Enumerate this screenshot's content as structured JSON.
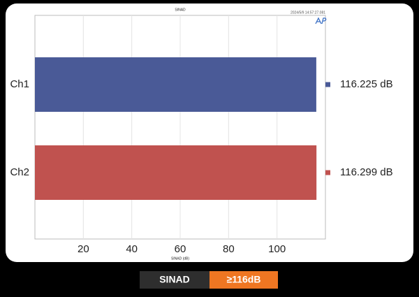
{
  "chart_data": {
    "type": "hbar",
    "title": "SINAD",
    "subtitle": "2024/5/9 14:57:27.081",
    "x_label": "SINAD (dB)",
    "categories": [
      "Ch1",
      "Ch2"
    ],
    "values": [
      116.225,
      116.299
    ],
    "value_labels": [
      "116.225 dB",
      "116.299 dB"
    ],
    "colors": [
      "#4a5a97",
      "#c0524f"
    ],
    "xlim": [
      0,
      120
    ],
    "xticks": [
      20,
      40,
      60,
      80,
      100
    ],
    "grid": true
  },
  "badge": {
    "label": "SINAD",
    "value": "≥116dB"
  }
}
